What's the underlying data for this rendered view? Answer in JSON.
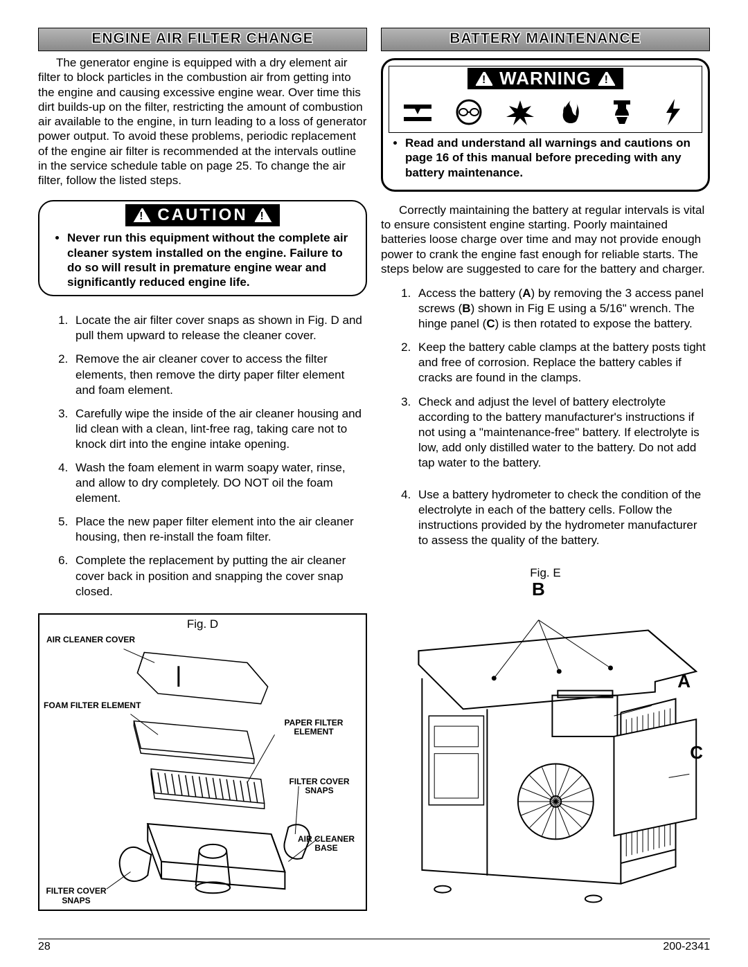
{
  "left": {
    "header": "ENGINE AIR FILTER CHANGE",
    "intro": "The generator engine is equipped with a dry element air filter to block particles in the combustion air from getting into the engine and causing excessive engine wear.  Over time this dirt builds-up on the filter, restricting the amount of combustion air available to the engine, in turn leading to a loss of generator power output.  To avoid these problems, periodic replacement of the engine air filter is recommended at the intervals outline in the service schedule table on page 25.  To change the air filter, follow the listed steps.",
    "caution_label": "CAUTION",
    "caution_text": "Never run this equipment without the complete air cleaner system installed on the engine. Failure to do so will result in premature engine wear and significantly reduced engine life.",
    "steps": [
      "Locate the air filter cover snaps as shown in Fig. D and pull them upward to release the cleaner cover.",
      "Remove the air cleaner cover to access the filter elements, then remove the dirty paper filter element and foam element.",
      "Carefully wipe the inside of the air cleaner housing and lid clean with a clean, lint-free rag, taking care not to knock dirt into the engine intake opening.",
      "Wash the foam element in warm soapy water, rinse, and allow to dry completely.  DO NOT oil the foam element.",
      "Place the new paper filter element into the air cleaner housing, then re-install the foam filter.",
      "Complete the replacement by putting the air cleaner cover back in position and snapping the cover snap closed."
    ],
    "figD": {
      "caption": "Fig. D",
      "labels": {
        "air_cleaner_cover": "AIR CLEANER COVER",
        "foam_filter": "FOAM FILTER ELEMENT",
        "paper_filter": "PAPER FILTER ELEMENT",
        "filter_cover_snaps_r": "FILTER COVER SNAPS",
        "air_cleaner_base": "AIR CLEANER BASE",
        "filter_cover_snaps_l": "FILTER COVER SNAPS"
      }
    }
  },
  "right": {
    "header": "BATTERY MAINTENANCE",
    "warning_label": "WARNING",
    "warning_text": "Read and understand all warnings and cautions on page 16 of this manual before preceding with any battery maintenance.",
    "intro": "Correctly maintaining the battery at regular intervals is vital to ensure consistent engine starting.  Poorly maintained batteries loose charge over time and may not provide enough power to crank the engine fast enough for reliable starts.  The steps below are suggested to care for the battery and charger.",
    "steps": [
      "Access the battery (<b>A</b>) by removing the 3 access panel screws (<b>B</b>) shown in Fig E using a 5/16\" wrench.  The hinge panel (<b>C</b>) is then rotated to expose the battery.",
      "Keep the battery cable clamps at the battery posts tight and free of corrosion.  Replace the battery cables if cracks are found in the clamps.",
      "Check and adjust the level of battery electrolyte according to the battery manufacturer's instructions if not using a \"maintenance-free\" battery.  If electrolyte is low, add only distilled water to the battery.  Do not add tap water to the battery.",
      "Use a battery hydrometer to check the condition of the electrolyte in each of the battery cells.   Follow the instructions provided by the hydrometer manufacturer to assess the quality of the battery."
    ],
    "figE": {
      "caption": "Fig. E"
    }
  },
  "footer": {
    "page": "28",
    "doc": "200-2341"
  },
  "design": {
    "header_bg_top": "#b5b5b5",
    "header_bg_bot": "#8a8a8a",
    "text_color": "#000000",
    "body_fontsize": 17,
    "header_fontsize": 21,
    "notice_label_fontsize": 24,
    "border_color": "#000000"
  }
}
